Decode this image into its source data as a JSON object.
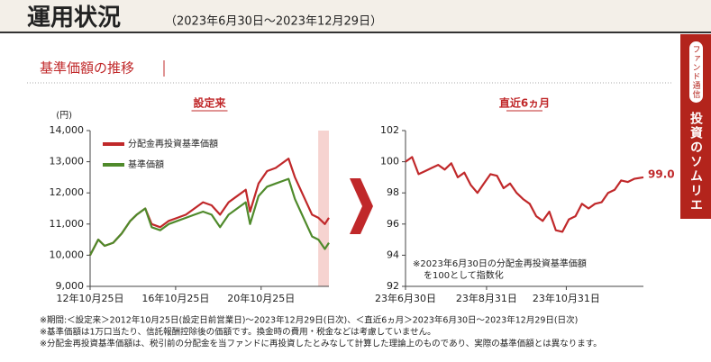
{
  "header": {
    "title": "運用状況",
    "period": "（2023年6月30日～2023年12月29日）"
  },
  "section_title": "基準価額の推移",
  "side_tab": {
    "label": "ファンド通信",
    "title": "投資のソムリエ"
  },
  "chart_data": [
    {
      "type": "line",
      "title": "設定来",
      "y_label": "(円)",
      "x": [
        2012.82,
        2013.2,
        2013.5,
        2013.9,
        2014.3,
        2014.7,
        2015.0,
        2015.4,
        2015.7,
        2016.1,
        2016.5,
        2016.9,
        2017.3,
        2017.7,
        2018.1,
        2018.5,
        2018.9,
        2019.3,
        2019.7,
        2020.1,
        2020.3,
        2020.7,
        2021.1,
        2021.5,
        2021.9,
        2022.1,
        2022.4,
        2022.8,
        2023.2,
        2023.5,
        2023.8,
        2023.99
      ],
      "series": [
        {
          "name": "分配金再投資基準価額",
          "color": "#c0282a",
          "values": [
            10000,
            10500,
            10300,
            10400,
            10700,
            11100,
            11300,
            11500,
            11000,
            10900,
            11100,
            11200,
            11300,
            11500,
            11700,
            11600,
            11300,
            11700,
            11900,
            12100,
            11400,
            12300,
            12700,
            12800,
            13000,
            13100,
            12500,
            11900,
            11300,
            11200,
            11000,
            11200
          ]
        },
        {
          "name": "基準価額",
          "color": "#4f8a2b",
          "values": [
            10000,
            10500,
            10300,
            10400,
            10700,
            11100,
            11300,
            11500,
            10900,
            10800,
            11000,
            11100,
            11200,
            11300,
            11400,
            11300,
            10900,
            11300,
            11500,
            11700,
            11000,
            11900,
            12200,
            12300,
            12400,
            12450,
            11800,
            11200,
            10600,
            10500,
            10200,
            10400
          ]
        }
      ],
      "xlim": [
        2012.82,
        2023.99
      ],
      "xticks": [
        {
          "value": 2012.82,
          "label": "12年10月25日"
        },
        {
          "value": 2016.82,
          "label": "16年10月25日"
        },
        {
          "value": 2020.82,
          "label": "20年10月25日"
        }
      ],
      "ylim": [
        9000,
        14000
      ],
      "yticks": [
        {
          "value": 9000,
          "label": "9,000"
        },
        {
          "value": 10000,
          "label": "10,000"
        },
        {
          "value": 11000,
          "label": "11,000"
        },
        {
          "value": 12000,
          "label": "12,000"
        },
        {
          "value": 13000,
          "label": "13,000"
        },
        {
          "value": 14000,
          "label": "14,000"
        }
      ],
      "shaded_x": [
        2023.49,
        2023.99
      ],
      "legend": "upper left"
    },
    {
      "type": "line",
      "title": "直近6ヵ月",
      "note": [
        "※2023年6月30日の分配金再投資基準価額",
        "を100として指数化"
      ],
      "x": [
        0,
        5,
        10,
        15,
        20,
        25,
        30,
        35,
        40,
        45,
        50,
        55,
        60,
        65,
        70,
        75,
        80,
        85,
        90,
        95,
        100,
        105,
        110,
        115,
        120,
        125,
        130,
        135,
        140,
        145,
        150,
        155,
        160,
        165,
        170,
        175,
        182
      ],
      "series": [
        {
          "color": "#c0282a",
          "values": [
            100,
            100.3,
            99.2,
            99.4,
            99.6,
            99.8,
            99.5,
            99.9,
            99.0,
            99.3,
            98.5,
            98.0,
            98.6,
            99.2,
            99.1,
            98.3,
            98.6,
            98.0,
            97.6,
            97.3,
            96.5,
            96.2,
            96.8,
            95.6,
            95.5,
            96.3,
            96.5,
            97.3,
            97.0,
            97.3,
            97.4,
            98.0,
            98.2,
            98.8,
            98.7,
            98.9,
            99.0
          ],
          "value_labels": [
            null,
            null,
            null,
            null,
            null,
            null,
            null,
            null,
            null,
            null,
            null,
            null,
            null,
            null,
            null,
            null,
            null,
            null,
            null,
            null,
            null,
            null,
            null,
            null,
            null,
            null,
            null,
            null,
            null,
            null,
            null,
            null,
            null,
            null,
            null,
            null,
            "99.0"
          ]
        }
      ],
      "xlim": [
        0,
        182
      ],
      "xticks": [
        {
          "value": 0,
          "label": "23年6月30日"
        },
        {
          "value": 62,
          "label": "23年8月31日"
        },
        {
          "value": 123,
          "label": "23年10月31日"
        }
      ],
      "ylim": [
        92,
        102
      ],
      "yticks": [
        92,
        94,
        96,
        98,
        100,
        102
      ]
    }
  ],
  "notes": [
    "※期間:＜設定来＞2012年10月25日(設定日前営業日)～2023年12月29日(日次)、＜直近6ヵ月＞2023年6月30日～2023年12月29日(日次)",
    "※基準価額は1万口当たり、信託報酬控除後の価額です。換金時の費用・税金などは考慮していません。",
    "※分配金再投資基準価額は、税引前の分配金を当ファンドに再投資したとみなして計算した理論上のものであり、実際の基準価額とは異なります。"
  ]
}
